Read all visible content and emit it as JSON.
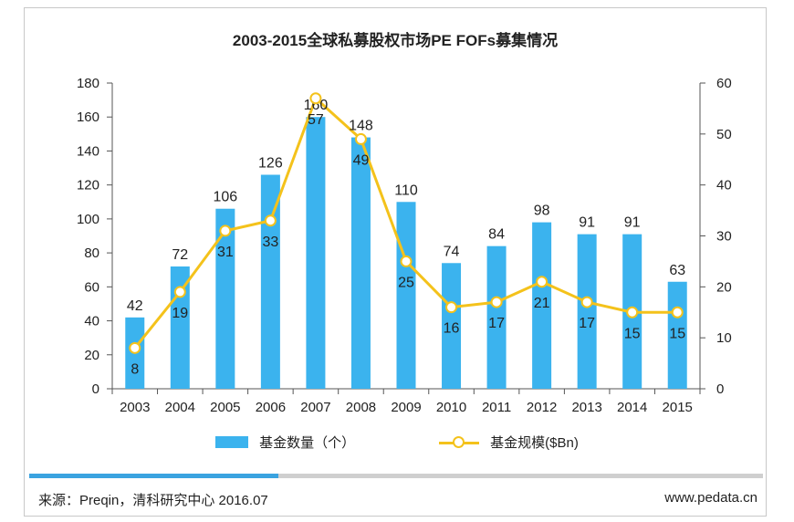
{
  "chart_data": {
    "type": "bar",
    "title": "2003-2015全球私募股权市场PE FOFs募集情况",
    "categories": [
      "2003",
      "2004",
      "2005",
      "2006",
      "2007",
      "2008",
      "2009",
      "2010",
      "2011",
      "2012",
      "2013",
      "2014",
      "2015"
    ],
    "series": [
      {
        "name": "基金数量（个）",
        "type": "bar",
        "axis": "left",
        "color": "#3bb3ee",
        "values": [
          42,
          72,
          106,
          126,
          160,
          148,
          110,
          74,
          84,
          98,
          91,
          91,
          63
        ]
      },
      {
        "name": "基金规模($Bn)",
        "type": "line",
        "axis": "right",
        "color": "#f4c21b",
        "values": [
          8,
          19,
          31,
          33,
          57,
          49,
          25,
          16,
          17,
          21,
          17,
          15,
          15
        ]
      }
    ],
    "y_left": {
      "min": 0,
      "max": 180,
      "ticks": [
        0,
        20,
        40,
        60,
        80,
        100,
        120,
        140,
        160,
        180
      ]
    },
    "y_right": {
      "min": 0,
      "max": 60,
      "ticks": [
        0,
        10,
        20,
        30,
        40,
        50,
        60
      ]
    },
    "grid": false,
    "legend_position": "bottom"
  },
  "footer": {
    "source": "来源：Preqin，清科研究中心 2016.07",
    "website": "www.pedata.cn",
    "progress": 0.34,
    "progress_color": "#3aa3e0"
  }
}
